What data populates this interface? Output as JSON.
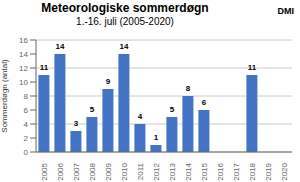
{
  "chart_data": {
    "type": "bar",
    "title": "Meteorologiske sommerdøgn",
    "subtitle": "1.-16. juli (2005-2020)",
    "categories": [
      "2005",
      "2006",
      "2007",
      "2008",
      "2009",
      "2010",
      "2011",
      "2012",
      "2013",
      "2014",
      "2015",
      "2016",
      "2017",
      "2018",
      "2019",
      "2020"
    ],
    "values": [
      11,
      14,
      3,
      5,
      9,
      14,
      4,
      1,
      5,
      8,
      6,
      0,
      0,
      11,
      0,
      0
    ],
    "color": "#4472C4",
    "ylabel": "Sommerdøgn (antal)",
    "ylim": [
      0,
      16
    ],
    "yticks": [
      0,
      2,
      4,
      6,
      8,
      10,
      12,
      14,
      16
    ],
    "grid": true,
    "data_labels": true,
    "annotations": [
      "DMI"
    ]
  }
}
